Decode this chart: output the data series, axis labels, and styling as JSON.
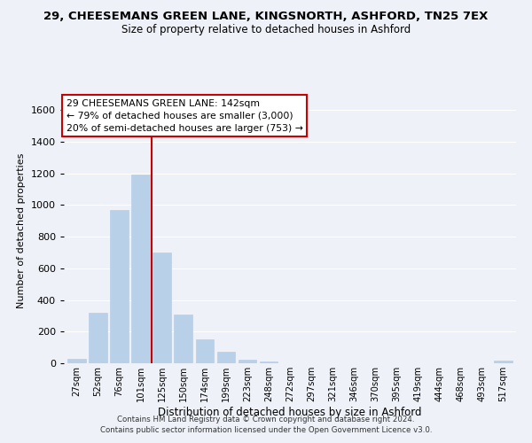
{
  "title": "29, CHEESEMANS GREEN LANE, KINGSNORTH, ASHFORD, TN25 7EX",
  "subtitle": "Size of property relative to detached houses in Ashford",
  "xlabel": "Distribution of detached houses by size in Ashford",
  "ylabel": "Number of detached properties",
  "bar_labels": [
    "27sqm",
    "52sqm",
    "76sqm",
    "101sqm",
    "125sqm",
    "150sqm",
    "174sqm",
    "199sqm",
    "223sqm",
    "248sqm",
    "272sqm",
    "297sqm",
    "321sqm",
    "346sqm",
    "370sqm",
    "395sqm",
    "419sqm",
    "444sqm",
    "468sqm",
    "493sqm",
    "517sqm"
  ],
  "bar_values": [
    28,
    320,
    970,
    1195,
    700,
    310,
    150,
    75,
    25,
    10,
    2,
    0,
    0,
    0,
    0,
    0,
    0,
    0,
    0,
    0,
    18
  ],
  "bar_color": "#b8d0e8",
  "bar_edge_color": "#b8d0e8",
  "vline_x_index": 3.5,
  "vline_color": "#cc0000",
  "ylim": [
    0,
    1680
  ],
  "yticks": [
    0,
    200,
    400,
    600,
    800,
    1000,
    1200,
    1400,
    1600
  ],
  "annotation_title": "29 CHEESEMANS GREEN LANE: 142sqm",
  "annotation_line1": "← 79% of detached houses are smaller (3,000)",
  "annotation_line2": "20% of semi-detached houses are larger (753) →",
  "annotation_box_facecolor": "#ffffff",
  "annotation_box_edgecolor": "#cc0000",
  "bg_color": "#eef2f8",
  "grid_color": "#ffffff",
  "footer1": "Contains HM Land Registry data © Crown copyright and database right 2024.",
  "footer2": "Contains public sector information licensed under the Open Government Licence v3.0."
}
